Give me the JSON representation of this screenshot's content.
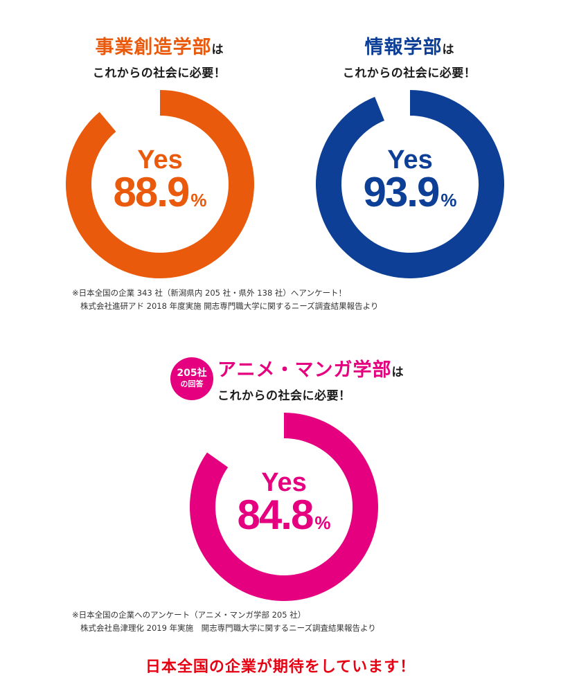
{
  "headings": [
    {
      "dept": "事業創造学部",
      "ha": "は",
      "sub": "これからの社会に必要！"
    },
    {
      "dept": "情報学部",
      "ha": "は",
      "sub": "これからの社会に必要！"
    },
    {
      "dept": "アニメ・マンガ学部",
      "ha": "は",
      "sub": "これからの社会に必要！"
    }
  ],
  "badge": {
    "line1": "205社",
    "line2": "の回答"
  },
  "notes": [
    {
      "line1": "※日本全国の企業 343 社（新潟県内 205 社・県外 138 社）へアンケート！",
      "line2": "株式会社進研アド 2018 年度実施 開志専門職大学に関するニーズ調査結果報告より"
    },
    {
      "line1": "※日本全国の企業へのアンケート（アニメ・マンガ学部 205 社）",
      "line2": "株式会社島津理化 2019 年実施　開志専門職大学に関するニーズ調査結果報告より"
    }
  ],
  "footer": "日本全国の企業が期待をしています！",
  "colors": {
    "orange": "#ea5a0c",
    "blue": "#0d3f96",
    "magenta": "#e4007f",
    "footer_red": "#e60012"
  },
  "chart_data": [
    {
      "type": "pie",
      "donut": true,
      "label": "Yes",
      "value": 88.9,
      "unit": "%",
      "color": "#ea5a0c"
    },
    {
      "type": "pie",
      "donut": true,
      "label": "Yes",
      "value": 93.9,
      "unit": "%",
      "color": "#0d3f96"
    },
    {
      "type": "pie",
      "donut": true,
      "label": "Yes",
      "value": 84.8,
      "unit": "%",
      "color": "#e4007f"
    }
  ]
}
